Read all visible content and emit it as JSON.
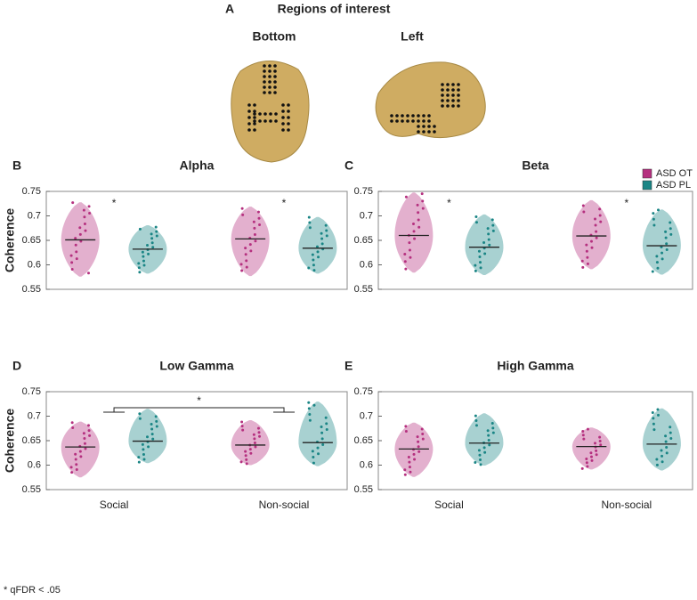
{
  "figure": {
    "panel": "A",
    "title": "Regions of interest",
    "views": [
      "Bottom",
      "Left"
    ],
    "footnote": "* qFDR < .05"
  },
  "legend": [
    {
      "name": "ASD OT",
      "color": "#b5307f"
    },
    {
      "name": "ASD PL",
      "color": "#1a8585"
    }
  ],
  "chart_data": [
    {
      "type": "violin",
      "panel": "B",
      "title": "Alpha",
      "ylabel": "Coherence",
      "ylim": [
        0.55,
        0.75
      ],
      "yticks": [
        0.55,
        0.6,
        0.65,
        0.7,
        0.75
      ],
      "series": [
        {
          "name": "ASD OT",
          "median": [
            0.651,
            0.653
          ],
          "min": [
            0.577,
            0.578
          ],
          "max": [
            0.727,
            0.718
          ]
        },
        {
          "name": "ASD PL",
          "median": [
            0.632,
            0.634
          ],
          "min": [
            0.583,
            0.583
          ],
          "max": [
            0.68,
            0.697
          ]
        }
      ],
      "annotation": "*",
      "significant": [
        true,
        true
      ]
    },
    {
      "type": "violin",
      "panel": "C",
      "title": "Beta",
      "ylim": [
        0.55,
        0.75
      ],
      "yticks": [
        0.55,
        0.6,
        0.65,
        0.7,
        0.75
      ],
      "series": [
        {
          "name": "ASD OT",
          "median": [
            0.66,
            0.659
          ],
          "min": [
            0.585,
            0.592
          ],
          "max": [
            0.747,
            0.731
          ]
        },
        {
          "name": "ASD PL",
          "median": [
            0.636,
            0.639
          ],
          "min": [
            0.58,
            0.581
          ],
          "max": [
            0.702,
            0.712
          ]
        }
      ],
      "annotation": "*",
      "significant": [
        true,
        true
      ]
    },
    {
      "type": "violin",
      "panel": "D",
      "title": "Low Gamma",
      "ylabel": "Coherence",
      "categories": [
        "Social",
        "Non-social"
      ],
      "ylim": [
        0.55,
        0.75
      ],
      "yticks": [
        0.55,
        0.6,
        0.65,
        0.7,
        0.75
      ],
      "series": [
        {
          "name": "ASD OT",
          "median": [
            0.637,
            0.641
          ],
          "min": [
            0.576,
            0.601
          ],
          "max": [
            0.688,
            0.691
          ]
        },
        {
          "name": "ASD PL",
          "median": [
            0.649,
            0.646
          ],
          "min": [
            0.605,
            0.599
          ],
          "max": [
            0.714,
            0.729
          ]
        }
      ],
      "annotation": "*",
      "bracket": true
    },
    {
      "type": "violin",
      "panel": "E",
      "title": "High Gamma",
      "categories": [
        "Social",
        "Non-social"
      ],
      "ylim": [
        0.55,
        0.75
      ],
      "yticks": [
        0.55,
        0.6,
        0.65,
        0.7,
        0.75
      ],
      "series": [
        {
          "name": "ASD OT",
          "median": [
            0.633,
            0.638
          ],
          "min": [
            0.577,
            0.592
          ],
          "max": [
            0.686,
            0.676
          ]
        },
        {
          "name": "ASD PL",
          "median": [
            0.645,
            0.643
          ],
          "min": [
            0.6,
            0.59
          ],
          "max": [
            0.705,
            0.715
          ]
        }
      ]
    }
  ]
}
